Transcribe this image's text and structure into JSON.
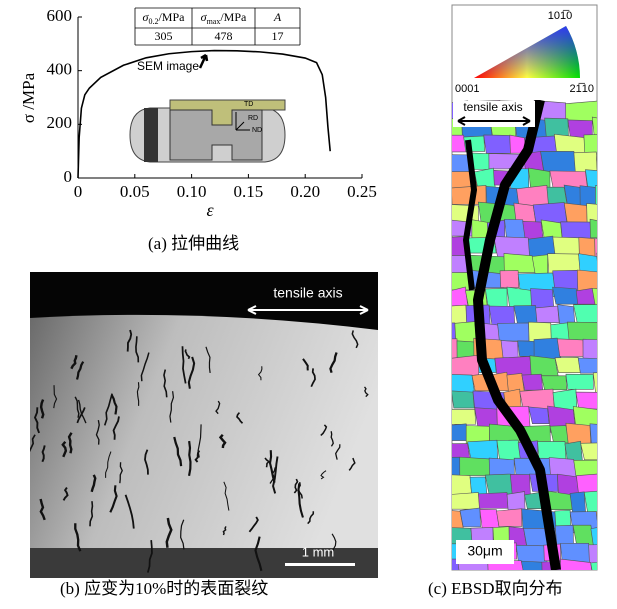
{
  "chart_data": {
    "type": "line",
    "xlabel": "ε",
    "ylabel": "σ /MPa",
    "color": "#000000",
    "x": [
      0,
      0.001,
      0.003,
      0.006,
      0.01,
      0.02,
      0.04,
      0.06,
      0.08,
      0.1,
      0.12,
      0.14,
      0.16,
      0.18,
      0.2,
      0.21,
      0.215,
      0.218,
      0.22,
      0.222
    ],
    "values": [
      0,
      150,
      260,
      310,
      335,
      375,
      420,
      448,
      463,
      471,
      475,
      474,
      470,
      462,
      447,
      430,
      385,
      300,
      190,
      100
    ],
    "xlim": [
      0,
      0.25
    ],
    "ylim": [
      0,
      600
    ],
    "xticks": [
      0,
      0.05,
      {
        "value": 0.1,
        "label": "0.10"
      },
      0.15,
      {
        "value": 0.2,
        "label": "0.20"
      },
      0.25
    ],
    "yticks": [
      0,
      200,
      400,
      600
    ],
    "annotation": "SEM image"
  },
  "table": {
    "header": [
      {
        "symbol": "σ",
        "sub": "0.2",
        "unit": "/MPa"
      },
      {
        "symbol": "σ",
        "sub": "max",
        "unit": "/MPa"
      },
      {
        "symbol": "A"
      }
    ],
    "rows": [
      [
        305,
        478,
        17
      ]
    ]
  },
  "inset": {
    "labels": [
      "TD",
      "RD",
      "ND"
    ]
  },
  "panel_a": {
    "caption": "(a) 拉伸曲线"
  },
  "panel_b": {
    "axis_label": "tensile axis",
    "scale_bar": "1 mm",
    "caption": "(b) 应变为10%时的表面裂纹"
  },
  "panel_c": {
    "ipf_top": "101̅0",
    "ipf_left": "0001",
    "ipf_right": "21̅10",
    "axis_label": "tensile axis",
    "scale_bar": "30μm",
    "caption": "(c) EBSD取向分布"
  }
}
